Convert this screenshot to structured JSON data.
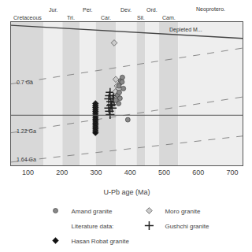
{
  "chart_data": {
    "type": "scatter",
    "xlabel": "U-Pb age (Ma)",
    "xlim": [
      50,
      730
    ],
    "xticks": [
      100,
      200,
      300,
      400,
      500,
      600,
      700
    ],
    "ylim": [
      -14,
      8
    ],
    "yticks": [],
    "tick_labels": "x",
    "grid": false,
    "legend": "bottom",
    "periods": [
      {
        "name": "Cretaceous",
        "xmin": 50,
        "xmax": 145,
        "color": "#d8d8d8"
      },
      {
        "name": "Jur.",
        "xmin": 145,
        "xmax": 201,
        "color": "#eeeeee"
      },
      {
        "name": "Tri.",
        "xmin": 201,
        "xmax": 252,
        "color": "#d8d8d8"
      },
      {
        "name": "Per.",
        "xmin": 252,
        "xmax": 299,
        "color": "#eeeeee"
      },
      {
        "name": "Car.",
        "xmin": 299,
        "xmax": 358,
        "color": "#d8d8d8"
      },
      {
        "name": "Dev.",
        "xmin": 358,
        "xmax": 419,
        "color": "#eeeeee"
      },
      {
        "name": "Sil.",
        "xmin": 419,
        "xmax": 444,
        "color": "#d8d8d8"
      },
      {
        "name": "Ord.",
        "xmin": 444,
        "xmax": 485,
        "color": "#eeeeee"
      },
      {
        "name": "Cam.",
        "xmin": 485,
        "xmax": 541,
        "color": "#d8d8d8"
      },
      {
        "name": "Neoprotero.",
        "xmin": 541,
        "xmax": 730,
        "color": "#eeeeee"
      }
    ],
    "lines": [
      {
        "x": [
          50,
          730
        ],
        "y": [
          7.5,
          5.5
        ],
        "color": "#444444",
        "line_style": "solid"
      },
      {
        "x": [
          50,
          730
        ],
        "y": [
          -1.5,
          4.0
        ],
        "color": "#888888",
        "line_style": "dashed"
      },
      {
        "x": [
          50,
          730
        ],
        "y": [
          -9.0,
          -3.5
        ],
        "color": "#888888",
        "line_style": "dashed"
      },
      {
        "x": [
          50,
          730
        ],
        "y": [
          -13.5,
          -9.5
        ],
        "color": "#888888",
        "line_style": "dashed"
      }
    ],
    "hlines": [
      {
        "y": -6.3,
        "color": "#555555"
      }
    ],
    "annotations": [
      {
        "x": 510,
        "y": 6.8,
        "text": "Depleted M..."
      },
      {
        "x": 62,
        "y": -1.2,
        "text": "0.7 Ga"
      },
      {
        "x": 62,
        "y": -8.7,
        "text": "1.22 Ga"
      },
      {
        "x": 62,
        "y": -13.1,
        "text": "1.64 Ga"
      }
    ],
    "series": [
      {
        "name": "Hasan Robat granite",
        "color": "#111111",
        "marker": "diamond",
        "x": [
          298,
          298,
          298,
          298,
          298,
          298,
          298,
          298,
          298,
          298,
          298,
          298,
          298,
          298,
          298,
          298
        ],
        "values": [
          -4.5,
          -4.8,
          -5.1,
          -5.4,
          -5.7,
          -6.0,
          -6.3,
          -6.6,
          -6.9,
          -7.2,
          -7.5,
          -7.8,
          -8.1,
          -8.4,
          -8.7,
          -9.0
        ]
      },
      {
        "name": "Gushchi granite",
        "color": "#222222",
        "marker": "cross",
        "x": [
          337,
          339,
          341,
          343,
          345,
          347,
          349,
          351,
          353,
          337,
          339,
          341,
          343
        ],
        "values": [
          -3.8,
          -3.3,
          -2.8,
          -4.2,
          -4.7,
          -5.2,
          -3.8,
          -3.3,
          -4.2,
          -5.2,
          -5.7,
          -6.2,
          -4.8
        ]
      },
      {
        "name": "Moro granite",
        "color": "#cccccc",
        "marker": "diamond",
        "x": [
          353,
          358,
          362,
          357,
          361,
          367,
          372
        ],
        "values": [
          4.8,
          -0.8,
          -1.8,
          -2.7,
          -3.7,
          -2.2,
          -1.3
        ]
      },
      {
        "name": "Amand granite",
        "color": "#888888",
        "marker": "circle",
        "x": [
          367,
          372,
          377,
          363,
          370,
          366,
          376,
          380,
          368,
          358,
          393
        ],
        "values": [
          -1.8,
          -1.0,
          -0.5,
          -3.2,
          -3.7,
          -4.5,
          -1.2,
          -2.2,
          -2.8,
          -4.0,
          -7.0
        ]
      }
    ],
    "legend_entries": [
      "Amand granite",
      "Moro granite",
      "Literature data:",
      "Gushchi granite",
      "Hasan Robat granite"
    ]
  }
}
